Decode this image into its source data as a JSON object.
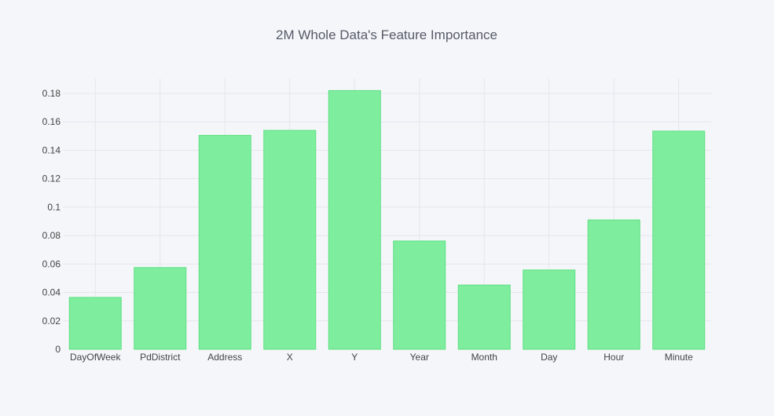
{
  "chart_data": {
    "type": "bar",
    "title": "2M Whole Data's Feature Importance",
    "xlabel": "",
    "ylabel": "",
    "categories": [
      "DayOfWeek",
      "PdDistrict",
      "Address",
      "X",
      "Y",
      "Year",
      "Month",
      "Day",
      "Hour",
      "Minute"
    ],
    "values": [
      0.0365,
      0.0575,
      0.1505,
      0.154,
      0.182,
      0.0762,
      0.0452,
      0.0558,
      0.091,
      0.1535
    ],
    "ylim": [
      0,
      0.1905
    ],
    "yticks": [
      0,
      0.02,
      0.04,
      0.06,
      0.08,
      0.1,
      0.12,
      0.14,
      0.16,
      0.18
    ],
    "ytick_labels": [
      "0",
      "0.02",
      "0.04",
      "0.06",
      "0.08",
      "0.1",
      "0.12",
      "0.14",
      "0.16",
      "0.18"
    ],
    "grid": true,
    "legend": "none",
    "colors": {
      "bar_fill": "#7eed9e",
      "bar_stroke": "#5ee082",
      "grid": "#e4e6ee",
      "background": "#f5f6fa",
      "title": "#555b67",
      "tick_text": "#444444"
    }
  }
}
